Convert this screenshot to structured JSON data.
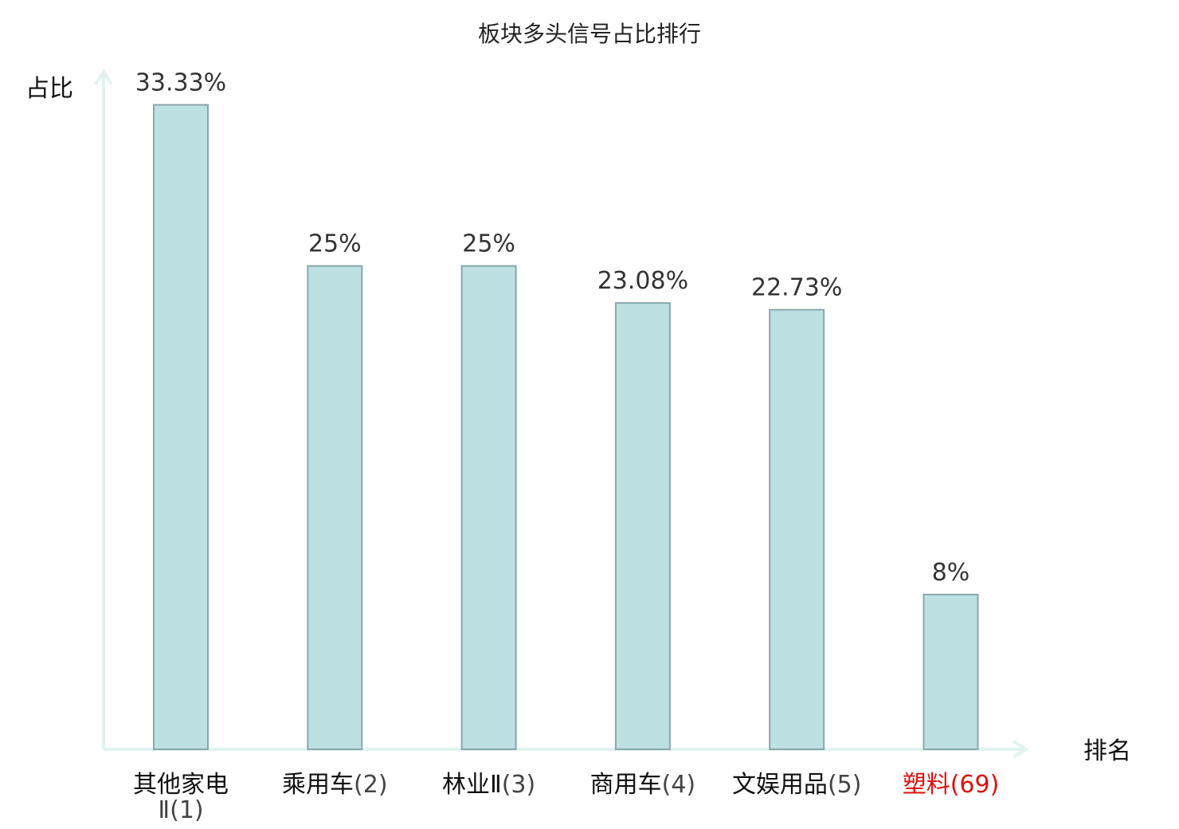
{
  "chart_data": {
    "type": "bar",
    "title": "板块多头信号占比排行",
    "ylabel": "占比",
    "xlabel": "排名",
    "ylim": [
      0,
      35
    ],
    "grid": false,
    "legend": "none",
    "bar_color": "#bde0e3",
    "bar_edge_color": "#8aa7aa",
    "axis_color": "#e0f3f1",
    "highlight_color": "#dd1111",
    "categories": [
      {
        "name": "其他家电",
        "name_cont": "Ⅱ",
        "rank": "(1)",
        "value": 33.33,
        "label": "33.33%",
        "highlight": false
      },
      {
        "name": "乘用车",
        "name_cont": "",
        "rank": "(2)",
        "value": 25,
        "label": "25%",
        "highlight": false
      },
      {
        "name": "林业Ⅱ",
        "name_cont": "",
        "rank": "(3)",
        "value": 25,
        "label": "25%",
        "highlight": false
      },
      {
        "name": "商用车",
        "name_cont": "",
        "rank": "(4)",
        "value": 23.08,
        "label": "23.08%",
        "highlight": false
      },
      {
        "name": "文娱用品",
        "name_cont": "",
        "rank": "(5)",
        "value": 22.73,
        "label": "22.73%",
        "highlight": false
      },
      {
        "name": "塑料",
        "name_cont": "",
        "rank": "(69)",
        "value": 8,
        "label": "8%",
        "highlight": true
      }
    ]
  }
}
